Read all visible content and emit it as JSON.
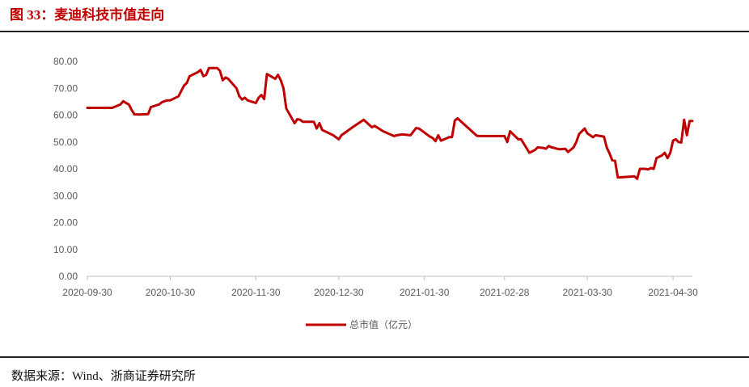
{
  "figure": {
    "title": "图 33：麦迪科技市值走向",
    "source": "数据来源：Wind、浙商证券研究所"
  },
  "colors": {
    "title": "#c00000",
    "series": "#c00000",
    "axis": "#bfbfbf",
    "tick_text": "#595959"
  },
  "chart_data": {
    "type": "line",
    "title": "",
    "xlabel": "",
    "ylabel": "",
    "ylim": [
      0,
      80
    ],
    "yticks": [
      0,
      10,
      20,
      30,
      40,
      50,
      60,
      70,
      80
    ],
    "ytick_labels": [
      "0.00",
      "10.00",
      "20.00",
      "30.00",
      "40.00",
      "50.00",
      "60.00",
      "70.00",
      "80.00"
    ],
    "xlim": [
      "2020-09-30",
      "2021-05-07"
    ],
    "xticks": [
      "2020-09-30",
      "2020-10-30",
      "2020-11-30",
      "2020-12-30",
      "2021-01-30",
      "2021-02-28",
      "2021-03-30",
      "2021-04-30"
    ],
    "grid": false,
    "legend": "bottom",
    "series": [
      {
        "name": "总市值（亿元）",
        "points": [
          [
            "2020-09-30",
            62.7
          ],
          [
            "2020-10-01",
            62.7
          ],
          [
            "2020-10-05",
            62.7
          ],
          [
            "2020-10-09",
            62.7
          ],
          [
            "2020-10-12",
            64.0
          ],
          [
            "2020-10-13",
            65.2
          ],
          [
            "2020-10-14",
            64.5
          ],
          [
            "2020-10-15",
            64.0
          ],
          [
            "2020-10-16",
            62.0
          ],
          [
            "2020-10-17",
            60.3
          ],
          [
            "2020-10-19",
            60.2
          ],
          [
            "2020-10-20",
            60.3
          ],
          [
            "2020-10-22",
            60.4
          ],
          [
            "2020-10-23",
            63.0
          ],
          [
            "2020-10-26",
            64.0
          ],
          [
            "2020-10-27",
            64.8
          ],
          [
            "2020-10-28",
            65.2
          ],
          [
            "2020-10-29",
            65.5
          ],
          [
            "2020-10-30",
            65.5
          ],
          [
            "2020-11-02",
            67.0
          ],
          [
            "2020-11-03",
            69.0
          ],
          [
            "2020-11-04",
            71.0
          ],
          [
            "2020-11-05",
            72.0
          ],
          [
            "2020-11-06",
            74.5
          ],
          [
            "2020-11-09",
            76.0
          ],
          [
            "2020-11-10",
            76.8
          ],
          [
            "2020-11-11",
            74.5
          ],
          [
            "2020-11-12",
            75.0
          ],
          [
            "2020-11-13",
            77.5
          ],
          [
            "2020-11-16",
            77.5
          ],
          [
            "2020-11-17",
            76.5
          ],
          [
            "2020-11-18",
            73.0
          ],
          [
            "2020-11-19",
            74.0
          ],
          [
            "2020-11-20",
            73.5
          ],
          [
            "2020-11-23",
            70.0
          ],
          [
            "2020-11-24",
            67.0
          ],
          [
            "2020-11-25",
            65.8
          ],
          [
            "2020-11-26",
            66.5
          ],
          [
            "2020-11-27",
            65.5
          ],
          [
            "2020-11-30",
            64.5
          ],
          [
            "2020-12-01",
            66.5
          ],
          [
            "2020-12-02",
            67.5
          ],
          [
            "2020-12-03",
            66.0
          ],
          [
            "2020-12-04",
            75.3
          ],
          [
            "2020-12-07",
            73.5
          ],
          [
            "2020-12-08",
            75.0
          ],
          [
            "2020-12-09",
            73.0
          ],
          [
            "2020-12-10",
            70.0
          ],
          [
            "2020-12-11",
            62.5
          ],
          [
            "2020-12-14",
            57.0
          ],
          [
            "2020-12-15",
            58.5
          ],
          [
            "2020-12-16",
            58.3
          ],
          [
            "2020-12-17",
            57.5
          ],
          [
            "2020-12-21",
            57.5
          ],
          [
            "2020-12-22",
            55.0
          ],
          [
            "2020-12-23",
            57.0
          ],
          [
            "2020-12-24",
            54.5
          ],
          [
            "2020-12-28",
            52.5
          ],
          [
            "2020-12-30",
            51.0
          ],
          [
            "2020-12-31",
            52.5
          ],
          [
            "2021-01-04",
            55.5
          ],
          [
            "2021-01-08",
            58.3
          ],
          [
            "2021-01-11",
            55.5
          ],
          [
            "2021-01-12",
            56.0
          ],
          [
            "2021-01-15",
            54.0
          ],
          [
            "2021-01-19",
            52.2
          ],
          [
            "2021-01-20",
            52.5
          ],
          [
            "2021-01-22",
            52.8
          ],
          [
            "2021-01-25",
            52.5
          ],
          [
            "2021-01-27",
            55.2
          ],
          [
            "2021-01-28",
            55.0
          ],
          [
            "2021-02-01",
            52.0
          ],
          [
            "2021-02-02",
            51.5
          ],
          [
            "2021-02-03",
            50.3
          ],
          [
            "2021-02-04",
            52.5
          ],
          [
            "2021-02-05",
            50.5
          ],
          [
            "2021-02-08",
            51.8
          ],
          [
            "2021-02-09",
            51.8
          ],
          [
            "2021-02-10",
            58.0
          ],
          [
            "2021-02-11",
            58.8
          ],
          [
            "2021-02-18",
            52.3
          ],
          [
            "2021-02-19",
            52.2
          ],
          [
            "2021-02-22",
            52.2
          ],
          [
            "2021-02-23",
            52.2
          ],
          [
            "2021-02-26",
            52.2
          ],
          [
            "2021-02-28",
            52.2
          ],
          [
            "2021-03-01",
            50.0
          ],
          [
            "2021-03-02",
            54.0
          ],
          [
            "2021-03-03",
            53.0
          ],
          [
            "2021-03-05",
            51.0
          ],
          [
            "2021-03-06",
            51.0
          ],
          [
            "2021-03-09",
            46.0
          ],
          [
            "2021-03-11",
            47.0
          ],
          [
            "2021-03-12",
            48.0
          ],
          [
            "2021-03-14",
            47.8
          ],
          [
            "2021-03-15",
            47.5
          ],
          [
            "2021-03-16",
            48.5
          ],
          [
            "2021-03-17",
            48.0
          ],
          [
            "2021-03-18",
            47.8
          ],
          [
            "2021-03-19",
            47.5
          ],
          [
            "2021-03-20",
            47.3
          ],
          [
            "2021-03-22",
            47.5
          ],
          [
            "2021-03-23",
            46.3
          ],
          [
            "2021-03-25",
            48.0
          ],
          [
            "2021-03-26",
            50.0
          ],
          [
            "2021-03-27",
            53.0
          ],
          [
            "2021-03-29",
            55.0
          ],
          [
            "2021-03-30",
            53.2
          ],
          [
            "2021-03-31",
            52.5
          ],
          [
            "2021-04-01",
            51.8
          ],
          [
            "2021-04-02",
            52.5
          ],
          [
            "2021-04-05",
            52.0
          ],
          [
            "2021-04-06",
            48.0
          ],
          [
            "2021-04-07",
            45.8
          ],
          [
            "2021-04-08",
            43.2
          ],
          [
            "2021-04-09",
            43.0
          ],
          [
            "2021-04-10",
            36.8
          ],
          [
            "2021-04-13",
            37.0
          ],
          [
            "2021-04-16",
            37.2
          ],
          [
            "2021-04-17",
            36.3
          ],
          [
            "2021-04-18",
            40.0
          ],
          [
            "2021-04-20",
            40.0
          ],
          [
            "2021-04-21",
            39.8
          ],
          [
            "2021-04-22",
            40.3
          ],
          [
            "2021-04-23",
            40.0
          ],
          [
            "2021-04-24",
            44.0
          ],
          [
            "2021-04-26",
            45.0
          ],
          [
            "2021-04-27",
            46.0
          ],
          [
            "2021-04-28",
            44.0
          ],
          [
            "2021-04-29",
            46.0
          ],
          [
            "2021-04-30",
            50.5
          ],
          [
            "2021-05-01",
            51.0
          ],
          [
            "2021-05-02",
            50.0
          ],
          [
            "2021-05-03",
            49.8
          ],
          [
            "2021-05-04",
            58.3
          ],
          [
            "2021-05-05",
            52.5
          ],
          [
            "2021-05-06",
            57.8
          ],
          [
            "2021-05-07",
            57.8
          ]
        ]
      }
    ]
  }
}
